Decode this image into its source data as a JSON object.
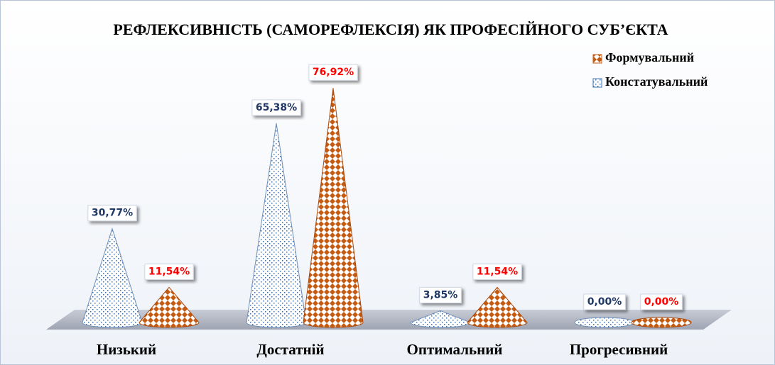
{
  "chart_data": {
    "type": "cone",
    "title": "РЕФЛЕКСИВНІСТЬ (САМОРЕФЛЕКСІЯ) ЯК ПРОФЕСІЙНОГО СУБ’ЄКТА",
    "categories": [
      "Низький",
      "Достатній",
      "Оптимальний",
      "Прогресивний"
    ],
    "series": [
      {
        "name": "Констатувальний",
        "color": "#3a6fb0",
        "values": [
          30.77,
          65.38,
          3.85,
          0.0
        ],
        "value_labels": [
          "30,77%",
          "65,38%",
          "3,85%",
          "0,00%"
        ],
        "label_color": "#1f3864"
      },
      {
        "name": "Формувальний",
        "color": "#c55a11",
        "values": [
          11.54,
          76.92,
          11.54,
          0.0
        ],
        "value_labels": [
          "11,54%",
          "76,92%",
          "11,54%",
          "0,00%"
        ],
        "label_color": "#ff0000"
      }
    ],
    "legend": "upper right"
  }
}
